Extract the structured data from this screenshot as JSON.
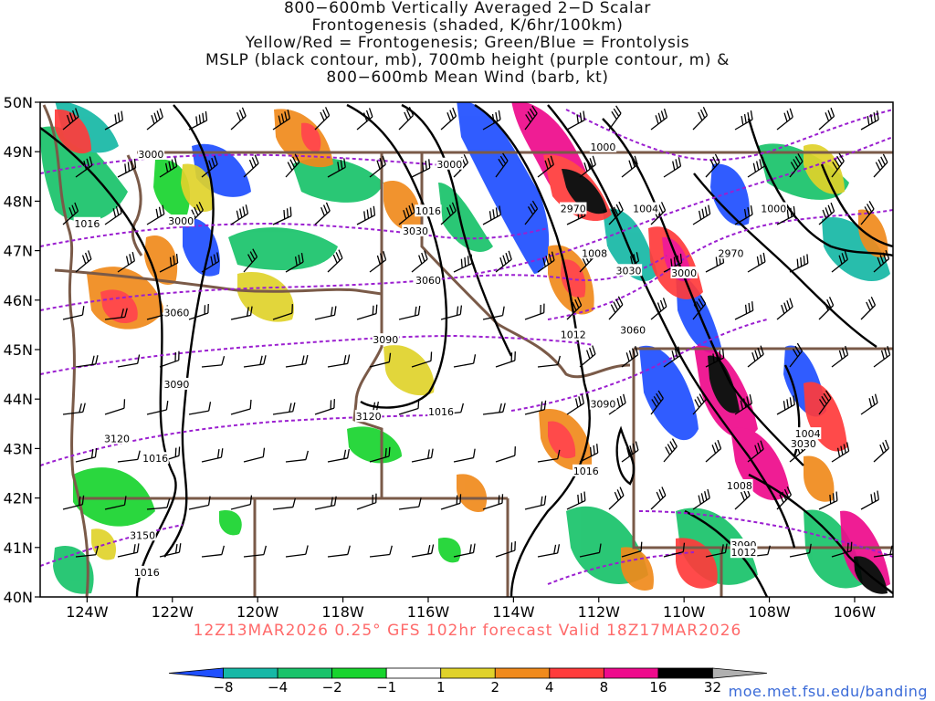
{
  "title": {
    "line1": "800−600mb Vertically Averaged 2−D Scalar",
    "line2": "Frontogenesis (shaded, K/6hr/100km)",
    "line3": "Yellow/Red = Frontogenesis;  Green/Blue = Frontolysis",
    "line4": "MSLP (black contour, mb), 700mb height (purple contour, m) &",
    "line5": "800−600mb Mean Wind (barb, kt)"
  },
  "map": {
    "lat_ticks": [
      {
        "value": 50,
        "label": "50N"
      },
      {
        "value": 49,
        "label": "49N"
      },
      {
        "value": 48,
        "label": "48N"
      },
      {
        "value": 47,
        "label": "47N"
      },
      {
        "value": 46,
        "label": "46N"
      },
      {
        "value": 45,
        "label": "45N"
      },
      {
        "value": 44,
        "label": "44N"
      },
      {
        "value": 43,
        "label": "43N"
      },
      {
        "value": 42,
        "label": "42N"
      },
      {
        "value": 41,
        "label": "41N"
      },
      {
        "value": 40,
        "label": "40N"
      }
    ],
    "lon_ticks": [
      {
        "value": -124,
        "label": "124W"
      },
      {
        "value": -122,
        "label": "122W"
      },
      {
        "value": -120,
        "label": "120W"
      },
      {
        "value": -118,
        "label": "118W"
      },
      {
        "value": -116,
        "label": "116W"
      },
      {
        "value": -114,
        "label": "114W"
      },
      {
        "value": -112,
        "label": "112W"
      },
      {
        "value": -110,
        "label": "110W"
      },
      {
        "value": -108,
        "label": "108W"
      },
      {
        "value": -106,
        "label": "106W"
      }
    ],
    "lon_range": [
      -125.1,
      -105.1
    ],
    "lat_range": [
      40,
      50
    ],
    "contour_labels": [
      {
        "text": "3000",
        "lon": -122.5,
        "lat": 48.95,
        "kind": "height"
      },
      {
        "text": "3000",
        "lon": -115.5,
        "lat": 48.75,
        "kind": "height"
      },
      {
        "text": "1000",
        "lon": -111.9,
        "lat": 49.1,
        "kind": "mslp"
      },
      {
        "text": "1016",
        "lon": -124.0,
        "lat": 47.55,
        "kind": "mslp"
      },
      {
        "text": "3000",
        "lon": -121.8,
        "lat": 47.6,
        "kind": "height"
      },
      {
        "text": "1016",
        "lon": -116.0,
        "lat": 47.8,
        "kind": "mslp"
      },
      {
        "text": "2970",
        "lon": -112.6,
        "lat": 47.85,
        "kind": "height"
      },
      {
        "text": "1004",
        "lon": -110.9,
        "lat": 47.85,
        "kind": "mslp"
      },
      {
        "text": "1000",
        "lon": -107.9,
        "lat": 47.85,
        "kind": "mslp"
      },
      {
        "text": "3030",
        "lon": -116.3,
        "lat": 47.4,
        "kind": "height"
      },
      {
        "text": "1008",
        "lon": -112.1,
        "lat": 46.95,
        "kind": "mslp"
      },
      {
        "text": "2970",
        "lon": -108.9,
        "lat": 46.95,
        "kind": "height"
      },
      {
        "text": "3030",
        "lon": -111.3,
        "lat": 46.6,
        "kind": "height"
      },
      {
        "text": "3000",
        "lon": -110.0,
        "lat": 46.55,
        "kind": "height"
      },
      {
        "text": "3060",
        "lon": -116.0,
        "lat": 46.4,
        "kind": "height"
      },
      {
        "text": "3060",
        "lon": -121.9,
        "lat": 45.75,
        "kind": "height"
      },
      {
        "text": "1012",
        "lon": -112.6,
        "lat": 45.3,
        "kind": "mslp"
      },
      {
        "text": "3060",
        "lon": -111.2,
        "lat": 45.4,
        "kind": "height"
      },
      {
        "text": "3090",
        "lon": -117.0,
        "lat": 45.2,
        "kind": "height"
      },
      {
        "text": "3090",
        "lon": -121.9,
        "lat": 44.3,
        "kind": "height"
      },
      {
        "text": "3090",
        "lon": -111.9,
        "lat": 43.9,
        "kind": "height"
      },
      {
        "text": "3120",
        "lon": -117.4,
        "lat": 43.65,
        "kind": "height"
      },
      {
        "text": "1016",
        "lon": -115.7,
        "lat": 43.75,
        "kind": "mslp"
      },
      {
        "text": "1004",
        "lon": -107.1,
        "lat": 43.3,
        "kind": "mslp"
      },
      {
        "text": "3030",
        "lon": -107.2,
        "lat": 43.1,
        "kind": "height"
      },
      {
        "text": "3120",
        "lon": -123.3,
        "lat": 43.2,
        "kind": "height"
      },
      {
        "text": "1016",
        "lon": -122.4,
        "lat": 42.8,
        "kind": "mslp"
      },
      {
        "text": "1016",
        "lon": -112.3,
        "lat": 42.55,
        "kind": "mslp"
      },
      {
        "text": "1008",
        "lon": -108.7,
        "lat": 42.25,
        "kind": "mslp"
      },
      {
        "text": "3150",
        "lon": -122.7,
        "lat": 41.25,
        "kind": "height"
      },
      {
        "text": "3090",
        "lon": -108.6,
        "lat": 41.05,
        "kind": "height"
      },
      {
        "text": "1012",
        "lon": -108.6,
        "lat": 40.9,
        "kind": "mslp"
      },
      {
        "text": "1016",
        "lon": -122.6,
        "lat": 40.5,
        "kind": "mslp"
      }
    ]
  },
  "valid_line": "12Z13MAR2026 0.25° GFS 102hr forecast Valid 18Z17MAR2026",
  "colorbar": {
    "tick_labels": [
      "−8",
      "−4",
      "−2",
      "−1",
      "1",
      "2",
      "4",
      "8",
      "16",
      "32"
    ],
    "colors": [
      "#1f4fff",
      "#16b8a6",
      "#19c36a",
      "#18d42e",
      "#ffffff",
      "#e0d22a",
      "#f08a1c",
      "#ff3b3b",
      "#ee0a8c",
      "#000000",
      "#b0b0b0"
    ]
  },
  "credit": "moe.met.fsu.edu/banding",
  "colors": {
    "mslp_contour": "#000000",
    "height_contour": "#9b1fd0",
    "borders": "#7a5a48"
  }
}
